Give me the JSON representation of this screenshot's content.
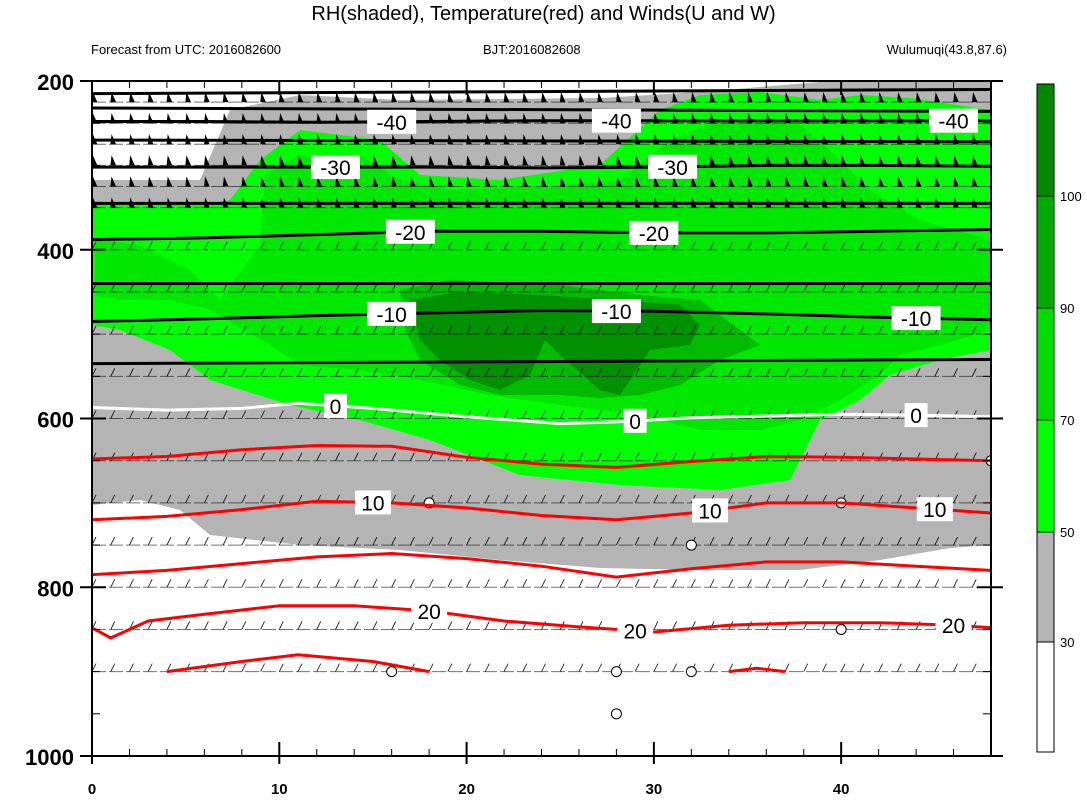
{
  "header": {
    "title": "RH(shaded), Temperature(red) and Winds(U and W)",
    "forecast": "Forecast from UTC: 2016082600",
    "bjt": "BJT:2016082608",
    "station": "Wulumuqi(43.8,87.6)"
  },
  "colors": {
    "rh_0_30": "#ffffff",
    "rh_30_50": "#b4b4b4",
    "rh_50_70": "#00ff00",
    "rh_70_90": "#00dc00",
    "rh_90_100": "#00aa00",
    "rh_100_plus": "#008800",
    "temperature_line": "#ff0000",
    "zero_isotherm": "#ffffff",
    "negative_isotherm": "#000000"
  },
  "chart_data": {
    "type": "contour",
    "x_ticks": [
      "0",
      "10",
      "20",
      "30",
      "40"
    ],
    "y_ticks": [
      "200",
      "400",
      "600",
      "800",
      "1000"
    ],
    "xlim": [
      0,
      48
    ],
    "ylim": [
      200,
      1000
    ],
    "colorbar": {
      "levels": [
        30,
        50,
        70,
        90,
        100
      ],
      "labels": [
        "30",
        "50",
        "70",
        "90",
        "100"
      ]
    },
    "isotherms": [
      {
        "value": -40,
        "label": "-40",
        "x": [
          0,
          6,
          12,
          18,
          24,
          30,
          36,
          42,
          48
        ],
        "p": [
          248,
          248,
          249,
          248,
          247,
          247,
          247,
          247,
          247
        ]
      },
      {
        "value": -30,
        "label": "-30",
        "x": [
          0,
          6,
          12,
          18,
          24,
          30,
          36,
          42,
          48
        ],
        "p": [
          302,
          302,
          302,
          302,
          303,
          302,
          300,
          300,
          301
        ]
      },
      {
        "value": -20,
        "label": "-20",
        "x": [
          0,
          6,
          12,
          18,
          24,
          30,
          36,
          42,
          48
        ],
        "p": [
          388,
          386,
          382,
          378,
          378,
          380,
          380,
          378,
          376
        ]
      },
      {
        "value": -10,
        "label": "-10",
        "x": [
          0,
          6,
          12,
          18,
          24,
          30,
          36,
          42,
          48
        ],
        "p": [
          485,
          482,
          478,
          475,
          472,
          473,
          476,
          480,
          483
        ]
      },
      {
        "value": 0,
        "label": "0",
        "x": [
          0,
          4,
          8,
          11,
          15,
          20,
          25,
          28,
          32,
          36,
          40,
          44,
          48
        ],
        "p": [
          587,
          590,
          588,
          582,
          588,
          598,
          606,
          604,
          599,
          597,
          595,
          596,
          598
        ]
      },
      {
        "value": 10,
        "label": "10",
        "x": [
          0,
          4,
          8,
          12,
          16,
          20,
          24,
          28,
          32,
          36,
          40,
          44,
          48
        ],
        "p": [
          720,
          716,
          708,
          698,
          700,
          706,
          715,
          720,
          712,
          700,
          700,
          706,
          712
        ]
      },
      {
        "value": 20,
        "label": "20",
        "x": [
          0,
          1,
          3,
          6,
          10,
          14,
          18,
          22,
          26,
          30,
          34,
          38,
          42,
          46,
          48
        ],
        "p": [
          848,
          860,
          840,
          832,
          822,
          822,
          828,
          840,
          847,
          853,
          845,
          842,
          842,
          845,
          848
        ]
      }
    ],
    "warm_isotherms_unlabeled": [
      {
        "x": [
          0,
          4,
          8,
          12,
          16,
          20,
          24,
          28,
          32,
          36,
          40,
          44,
          48
        ],
        "p": [
          648,
          645,
          637,
          632,
          633,
          646,
          654,
          658,
          651,
          645,
          646,
          648,
          650
        ]
      },
      {
        "x": [
          0,
          4,
          8,
          12,
          16,
          20,
          24,
          28,
          32,
          36,
          40,
          44,
          48
        ],
        "p": [
          785,
          780,
          772,
          764,
          760,
          766,
          775,
          788,
          778,
          770,
          770,
          775,
          780
        ]
      },
      {
        "x": [
          4,
          8,
          11,
          15,
          18
        ],
        "p": [
          900,
          888,
          880,
          888,
          900
        ]
      },
      {
        "x": [
          34,
          35.5,
          37
        ],
        "p": [
          900,
          896,
          900
        ]
      }
    ],
    "wind_levels_hpa": [
      225,
      250,
      275,
      300,
      325,
      350,
      400,
      450,
      500,
      550,
      600,
      650,
      700,
      750,
      800,
      850,
      900
    ]
  }
}
